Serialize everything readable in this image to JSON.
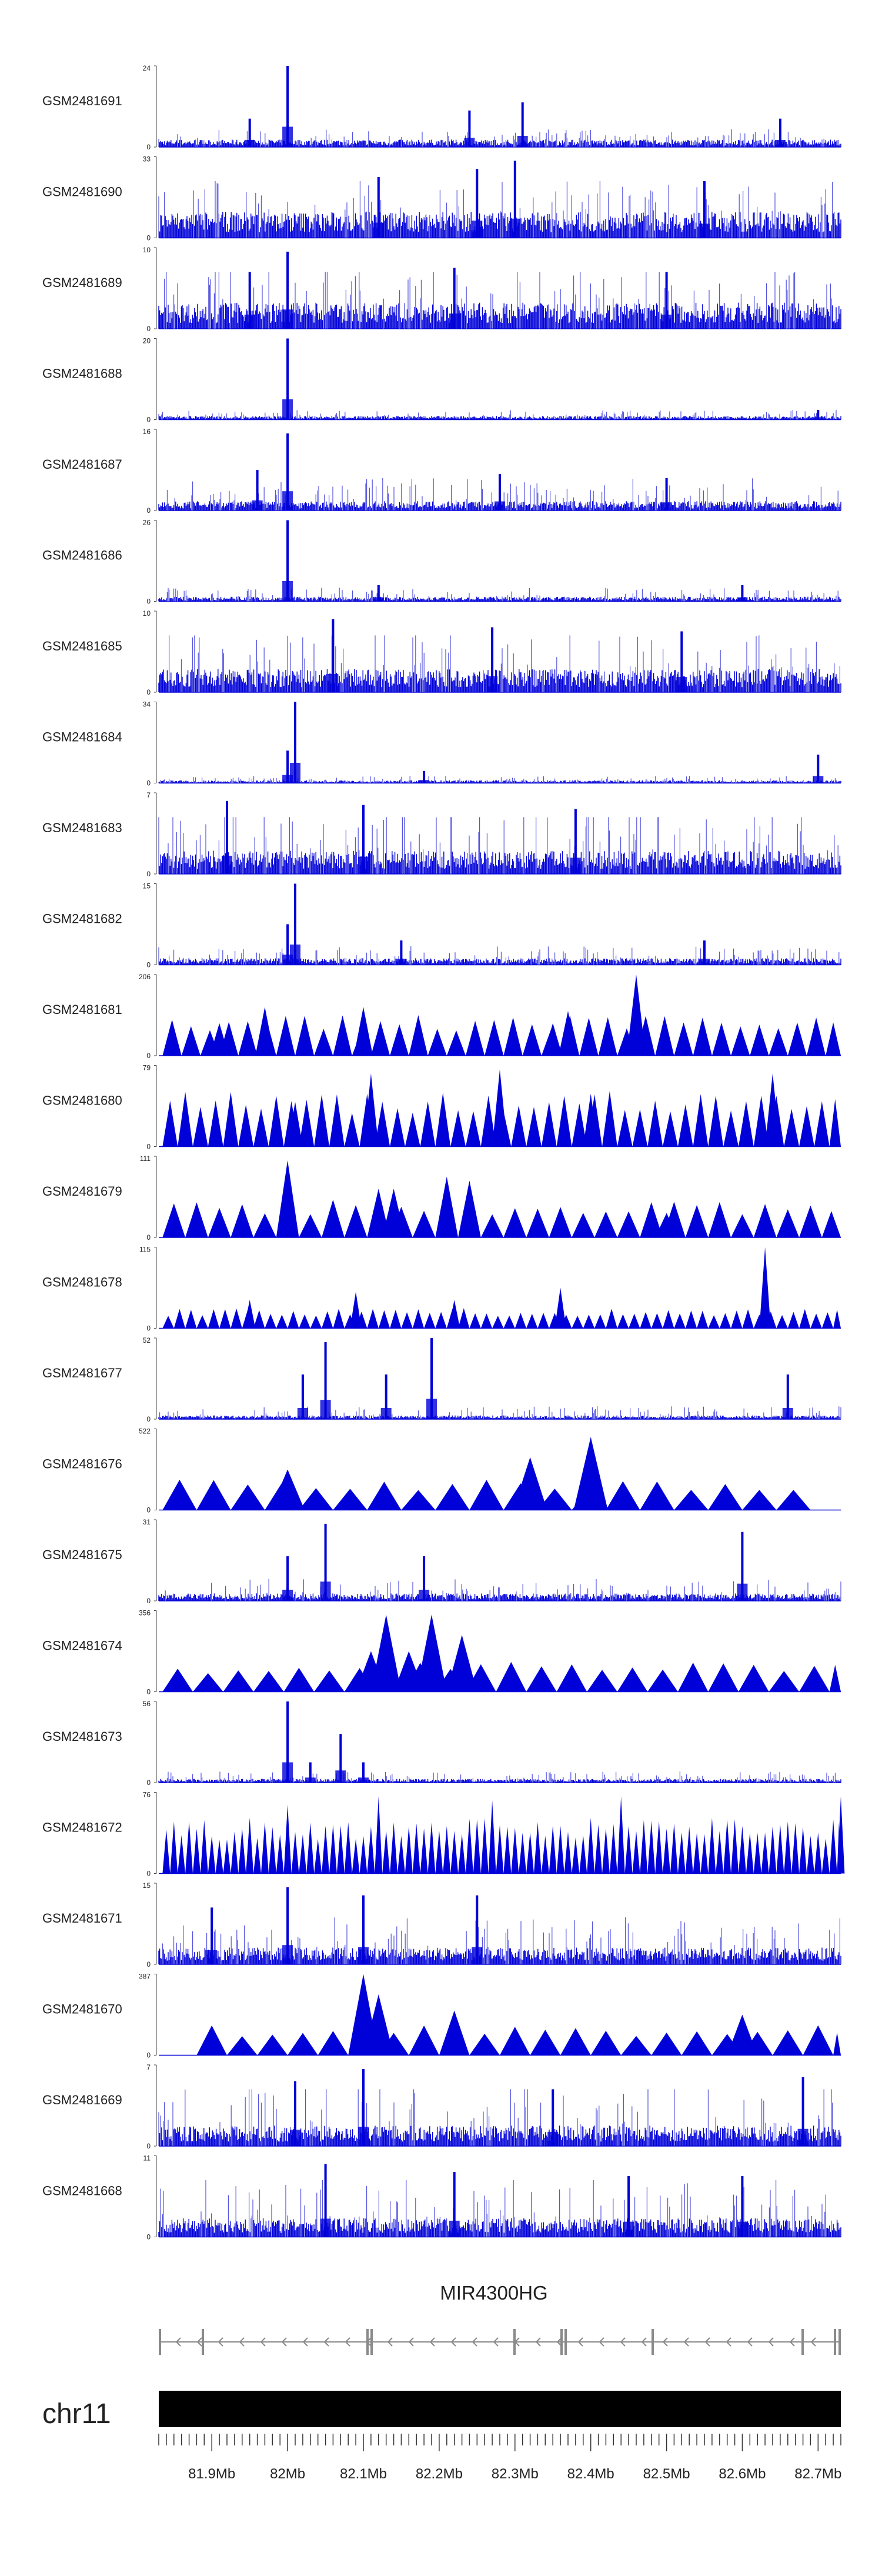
{
  "chart_data": {
    "type": "genome-browser",
    "chromosome": "chr11",
    "region_mb": [
      81.83,
      82.73
    ],
    "gene": {
      "name": "MIR4300HG",
      "strand": "-"
    },
    "axis": {
      "unit": "Mb",
      "ticks": [
        "81.9Mb",
        "82Mb",
        "82.1Mb",
        "82.2Mb",
        "82.3Mb",
        "82.4Mb",
        "82.5Mb",
        "82.6Mb",
        "82.7Mb"
      ],
      "tick_values": [
        81.9,
        82.0,
        82.1,
        82.2,
        82.3,
        82.4,
        82.5,
        82.6,
        82.7
      ]
    },
    "colors": {
      "signal": "#0000d8",
      "signal_light": "#5252e0",
      "ideogram": "#000000",
      "gene": "#8a8a8a"
    },
    "tracks": [
      {
        "sample": "GSM2481691",
        "ymax": "24",
        "ymin": "0",
        "style": "dense",
        "baseline": 0.08,
        "noise": 0.14,
        "peaks": [
          [
            82.0,
            1.0
          ],
          [
            81.95,
            0.35
          ],
          [
            82.24,
            0.45
          ],
          [
            82.31,
            0.55
          ],
          [
            82.65,
            0.35
          ]
        ]
      },
      {
        "sample": "GSM2481690",
        "ymax": "33",
        "ymin": "0",
        "style": "dense",
        "baseline": 0.28,
        "noise": 0.45,
        "peaks": [
          [
            82.3,
            0.95
          ],
          [
            82.25,
            0.85
          ],
          [
            82.12,
            0.75
          ],
          [
            82.55,
            0.7
          ]
        ]
      },
      {
        "sample": "GSM2481689",
        "ymax": "10",
        "ymin": "0",
        "style": "dense",
        "baseline": 0.28,
        "noise": 0.55,
        "peaks": [
          [
            82.0,
            0.95
          ],
          [
            81.95,
            0.7
          ],
          [
            82.22,
            0.75
          ],
          [
            82.5,
            0.7
          ]
        ]
      },
      {
        "sample": "GSM2481688",
        "ymax": "20",
        "ymin": "0",
        "style": "dense",
        "baseline": 0.04,
        "noise": 0.08,
        "peaks": [
          [
            82.0,
            1.0
          ],
          [
            82.7,
            0.12
          ]
        ]
      },
      {
        "sample": "GSM2481687",
        "ymax": "16",
        "ymin": "0",
        "style": "dense",
        "baseline": 0.1,
        "noise": 0.3,
        "peaks": [
          [
            82.0,
            0.95
          ],
          [
            81.96,
            0.5
          ],
          [
            82.28,
            0.45
          ],
          [
            82.5,
            0.4
          ]
        ]
      },
      {
        "sample": "GSM2481686",
        "ymax": "26",
        "ymin": "0",
        "style": "dense",
        "baseline": 0.05,
        "noise": 0.12,
        "peaks": [
          [
            82.0,
            1.0
          ],
          [
            82.12,
            0.2
          ],
          [
            82.6,
            0.2
          ]
        ]
      },
      {
        "sample": "GSM2481685",
        "ymax": "10",
        "ymin": "0",
        "style": "dense",
        "baseline": 0.25,
        "noise": 0.5,
        "peaks": [
          [
            82.06,
            0.9
          ],
          [
            82.27,
            0.8
          ],
          [
            82.52,
            0.75
          ]
        ]
      },
      {
        "sample": "GSM2481684",
        "ymax": "34",
        "ymin": "0",
        "style": "dense",
        "baseline": 0.03,
        "noise": 0.06,
        "peaks": [
          [
            82.01,
            1.0
          ],
          [
            82.0,
            0.4
          ],
          [
            82.18,
            0.15
          ],
          [
            82.7,
            0.35
          ]
        ]
      },
      {
        "sample": "GSM2481683",
        "ymax": "7",
        "ymin": "0",
        "style": "dense",
        "baseline": 0.25,
        "noise": 0.6,
        "peaks": [
          [
            81.92,
            0.9
          ],
          [
            82.1,
            0.85
          ],
          [
            82.38,
            0.8
          ]
        ]
      },
      {
        "sample": "GSM2481682",
        "ymax": "15",
        "ymin": "0",
        "style": "dense",
        "baseline": 0.07,
        "noise": 0.16,
        "peaks": [
          [
            82.01,
            1.0
          ],
          [
            82.0,
            0.5
          ],
          [
            82.15,
            0.3
          ],
          [
            82.55,
            0.3
          ]
        ]
      },
      {
        "sample": "GSM2481681",
        "ymax": "206",
        "ymin": "0",
        "style": "triangle",
        "step": 0.025,
        "base_height": 0.4,
        "peaks": [
          [
            82.46,
            1.0
          ],
          [
            81.97,
            0.6
          ],
          [
            82.1,
            0.6
          ],
          [
            82.37,
            0.55
          ],
          [
            81.91,
            0.4
          ],
          [
            82.35,
            0.4
          ]
        ]
      },
      {
        "sample": "GSM2481680",
        "ymax": "79",
        "ymin": "0",
        "style": "triangle",
        "step": 0.02,
        "base_height": 0.55,
        "peaks": [
          [
            82.28,
            0.95
          ],
          [
            82.11,
            0.9
          ],
          [
            82.64,
            0.9
          ],
          [
            82.01,
            0.55
          ],
          [
            82.4,
            0.65
          ]
        ]
      },
      {
        "sample": "GSM2481679",
        "ymax": "111",
        "ymin": "0",
        "style": "triangle",
        "step": 0.03,
        "base_height": 0.38,
        "peaks": [
          [
            82.0,
            0.95
          ],
          [
            82.21,
            0.75
          ],
          [
            82.24,
            0.7
          ],
          [
            82.14,
            0.6
          ],
          [
            82.12,
            0.6
          ],
          [
            82.5,
            0.3
          ]
        ]
      },
      {
        "sample": "GSM2481678",
        "ymax": "115",
        "ymin": "0",
        "style": "triangle",
        "step": 0.015,
        "base_height": 0.2,
        "peaks": [
          [
            82.63,
            1.0
          ],
          [
            82.36,
            0.5
          ],
          [
            82.09,
            0.45
          ],
          [
            82.22,
            0.35
          ],
          [
            81.95,
            0.35
          ]
        ]
      },
      {
        "sample": "GSM2481677",
        "ymax": "52",
        "ymin": "0",
        "style": "dense",
        "baseline": 0.04,
        "noise": 0.12,
        "peaks": [
          [
            82.19,
            1.0
          ],
          [
            82.05,
            0.95
          ],
          [
            82.02,
            0.55
          ],
          [
            82.13,
            0.55
          ],
          [
            82.66,
            0.55
          ]
        ]
      },
      {
        "sample": "GSM2481676",
        "ymax": "522",
        "ymin": "0",
        "style": "triangle",
        "step": 0.045,
        "base_height": 0.3,
        "peaks": [
          [
            82.4,
            0.9
          ],
          [
            82.32,
            0.65
          ],
          [
            82.0,
            0.5
          ]
        ],
        "end_mb": 82.69
      },
      {
        "sample": "GSM2481675",
        "ymax": "31",
        "ymin": "0",
        "style": "dense",
        "baseline": 0.08,
        "noise": 0.2,
        "peaks": [
          [
            82.05,
            0.95
          ],
          [
            82.6,
            0.85
          ],
          [
            82.0,
            0.55
          ],
          [
            82.18,
            0.55
          ]
        ]
      },
      {
        "sample": "GSM2481674",
        "ymax": "356",
        "ymin": "0",
        "style": "triangle",
        "step": 0.04,
        "base_height": 0.3,
        "peaks": [
          [
            82.13,
            0.95
          ],
          [
            82.19,
            0.95
          ],
          [
            82.23,
            0.7
          ],
          [
            82.11,
            0.5
          ],
          [
            82.16,
            0.5
          ]
        ]
      },
      {
        "sample": "GSM2481673",
        "ymax": "56",
        "ymin": "0",
        "style": "dense",
        "baseline": 0.04,
        "noise": 0.1,
        "peaks": [
          [
            82.0,
            1.0
          ],
          [
            82.07,
            0.6
          ],
          [
            82.03,
            0.25
          ],
          [
            82.1,
            0.25
          ]
        ]
      },
      {
        "sample": "GSM2481672",
        "ymax": "76",
        "ymin": "0",
        "style": "triangle",
        "step": 0.01,
        "base_height": 0.55,
        "peaks": [
          [
            82.12,
            0.95
          ],
          [
            82.44,
            0.95
          ],
          [
            82.27,
            0.9
          ],
          [
            82.73,
            0.95
          ],
          [
            82.0,
            0.85
          ]
        ]
      },
      {
        "sample": "GSM2481671",
        "ymax": "15",
        "ymin": "0",
        "style": "dense",
        "baseline": 0.18,
        "noise": 0.4,
        "peaks": [
          [
            82.0,
            0.95
          ],
          [
            82.1,
            0.85
          ],
          [
            82.25,
            0.85
          ],
          [
            81.9,
            0.7
          ]
        ]
      },
      {
        "sample": "GSM2481670",
        "ymax": "387",
        "ymin": "0",
        "style": "triangle",
        "step": 0.04,
        "base_height": 0.3,
        "peaks": [
          [
            82.1,
            1.0
          ],
          [
            82.12,
            0.75
          ],
          [
            82.22,
            0.55
          ],
          [
            82.6,
            0.5
          ]
        ],
        "start_mb": 81.88
      },
      {
        "sample": "GSM2481669",
        "ymax": "7",
        "ymin": "0",
        "style": "dense",
        "baseline": 0.22,
        "noise": 0.55,
        "peaks": [
          [
            82.1,
            0.95
          ],
          [
            82.01,
            0.8
          ],
          [
            82.68,
            0.85
          ],
          [
            82.35,
            0.7
          ]
        ]
      },
      {
        "sample": "GSM2481668",
        "ymax": "11",
        "ymin": "0",
        "style": "dense",
        "baseline": 0.2,
        "noise": 0.55,
        "peaks": [
          [
            82.05,
            0.9
          ],
          [
            82.22,
            0.8
          ],
          [
            82.45,
            0.75
          ],
          [
            82.6,
            0.75
          ]
        ]
      }
    ]
  }
}
